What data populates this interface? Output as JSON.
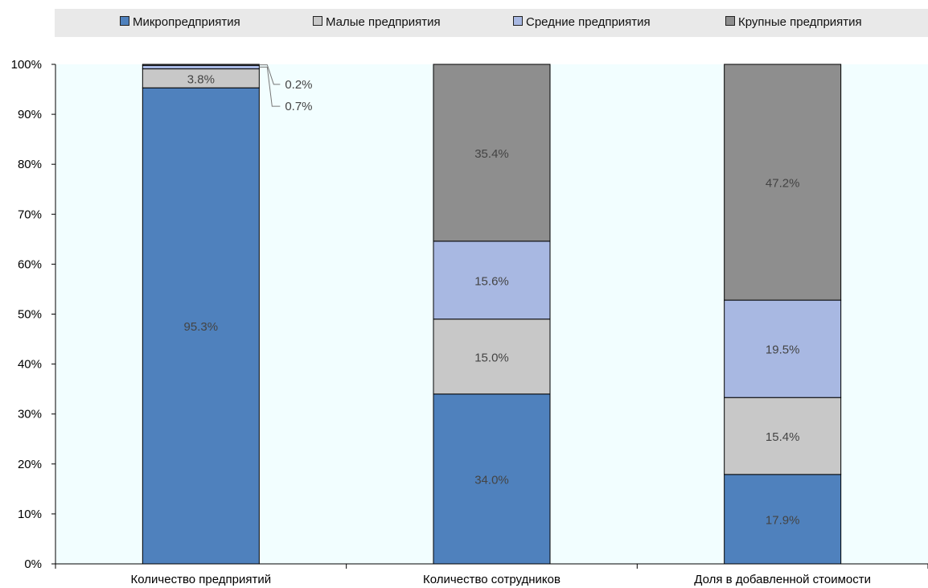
{
  "colors": {
    "micro": "#4f81bd",
    "small": "#c8c8c8",
    "medium": "#a8b8e2",
    "large": "#8e8e8e",
    "plot_bg": "#f2feff",
    "legend_bg": "#e9e9e9"
  },
  "chart_data": {
    "type": "bar",
    "stacked": true,
    "categories": [
      "Количество предприятий",
      "Количество сотрудников",
      "Доля в добавленной стоимости"
    ],
    "series": [
      {
        "name": "Микропредприятия",
        "values": [
          95.3,
          34.0,
          17.9
        ],
        "labels": [
          "95.3%",
          "34.0%",
          "17.9%"
        ]
      },
      {
        "name": "Малые предприятия",
        "values": [
          3.8,
          15.0,
          15.4
        ],
        "labels": [
          "3.8%",
          "15.0%",
          "15.4%"
        ]
      },
      {
        "name": "Средние предприятия",
        "values": [
          0.7,
          15.6,
          19.5
        ],
        "labels": [
          "0.7%",
          "15.6%",
          "19.5%"
        ]
      },
      {
        "name": "Крупные предприятия",
        "values": [
          0.2,
          35.4,
          47.2
        ],
        "labels": [
          "0.2%",
          "35.4%",
          "47.2%"
        ]
      }
    ],
    "ylim": [
      0,
      100
    ],
    "yticks": [
      "0%",
      "10%",
      "20%",
      "30%",
      "40%",
      "50%",
      "60%",
      "70%",
      "80%",
      "90%",
      "100%"
    ],
    "legend_position": "top",
    "grid": false
  }
}
